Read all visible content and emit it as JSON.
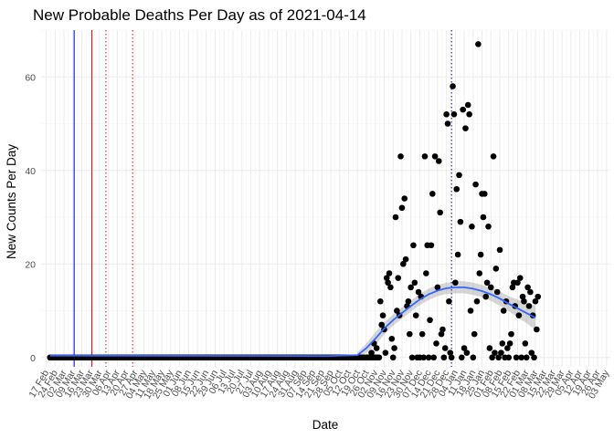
{
  "chart_data": {
    "type": "scatter",
    "title": "New Probable Deaths Per Day as of 2021-04-14",
    "xlabel": "Date",
    "ylabel": "New Counts Per Day",
    "xlim": [
      "2020-02-13",
      "2021-05-06"
    ],
    "ylim": [
      -2,
      70
    ],
    "y_ticks": [
      0,
      20,
      40,
      60
    ],
    "x_tick_labels": [
      "17 Feb",
      "24 Feb",
      "02 Mar",
      "09 Mar",
      "16 Mar",
      "23 Mar",
      "30 Mar",
      "06 Apr",
      "13 Apr",
      "20 Apr",
      "27 Apr",
      "04 May",
      "11 May",
      "18 May",
      "25 May",
      "01 Jun",
      "08 Jun",
      "15 Jun",
      "22 Jun",
      "29 Jun",
      "06 Jul",
      "13 Jul",
      "20 Jul",
      "27 Jul",
      "03 Aug",
      "10 Aug",
      "17 Aug",
      "24 Aug",
      "31 Aug",
      "07 Sep",
      "14 Sep",
      "21 Sep",
      "28 Sep",
      "05 Oct",
      "12 Oct",
      "19 Oct",
      "26 Oct",
      "02 Nov",
      "09 Nov",
      "16 Nov",
      "23 Nov",
      "30 Nov",
      "07 Dec",
      "14 Dec",
      "21 Dec",
      "28 Dec",
      "04 Jan",
      "11 Jan",
      "18 Jan",
      "25 Jan",
      "01 Feb",
      "08 Feb",
      "15 Feb",
      "22 Feb",
      "01 Mar",
      "08 Mar",
      "15 Mar",
      "22 Mar",
      "29 Mar",
      "05 Apr",
      "12 Apr",
      "19 Apr",
      "26 Apr",
      "03 May"
    ],
    "x_tick_start": "2020-02-17",
    "x_tick_step_days": 7,
    "zero_run": {
      "start": "2020-02-20",
      "end": "2020-11-05",
      "value": 0
    },
    "points": [
      [
        "2020-10-28",
        0
      ],
      [
        "2020-10-30",
        1
      ],
      [
        "2020-11-01",
        3
      ],
      [
        "2020-11-03",
        2
      ],
      [
        "2020-11-04",
        0
      ],
      [
        "2020-11-06",
        12
      ],
      [
        "2020-11-07",
        7
      ],
      [
        "2020-11-08",
        9
      ],
      [
        "2020-11-09",
        6
      ],
      [
        "2020-11-10",
        1
      ],
      [
        "2020-11-11",
        17
      ],
      [
        "2020-11-12",
        16
      ],
      [
        "2020-11-13",
        18
      ],
      [
        "2020-11-14",
        15
      ],
      [
        "2020-11-15",
        4
      ],
      [
        "2020-11-16",
        0
      ],
      [
        "2020-11-17",
        2
      ],
      [
        "2020-11-18",
        30
      ],
      [
        "2020-11-19",
        10
      ],
      [
        "2020-11-20",
        17
      ],
      [
        "2020-11-21",
        9
      ],
      [
        "2020-11-22",
        43
      ],
      [
        "2020-11-23",
        32
      ],
      [
        "2020-11-24",
        20
      ],
      [
        "2020-11-25",
        34
      ],
      [
        "2020-11-26",
        21
      ],
      [
        "2020-11-27",
        11
      ],
      [
        "2020-11-28",
        12
      ],
      [
        "2020-11-29",
        5
      ],
      [
        "2020-11-30",
        15
      ],
      [
        "2020-12-01",
        0
      ],
      [
        "2020-12-02",
        24
      ],
      [
        "2020-12-03",
        16
      ],
      [
        "2020-12-04",
        9
      ],
      [
        "2020-12-05",
        0
      ],
      [
        "2020-12-06",
        14
      ],
      [
        "2020-12-07",
        0
      ],
      [
        "2020-12-08",
        13
      ],
      [
        "2020-12-09",
        5
      ],
      [
        "2020-12-10",
        0
      ],
      [
        "2020-12-11",
        43
      ],
      [
        "2020-12-12",
        18
      ],
      [
        "2020-12-13",
        24
      ],
      [
        "2020-12-14",
        0
      ],
      [
        "2020-12-15",
        8
      ],
      [
        "2020-12-16",
        24
      ],
      [
        "2020-12-17",
        35
      ],
      [
        "2020-12-18",
        0
      ],
      [
        "2020-12-19",
        43
      ],
      [
        "2020-12-20",
        3
      ],
      [
        "2020-12-21",
        15
      ],
      [
        "2020-12-22",
        42
      ],
      [
        "2020-12-23",
        31
      ],
      [
        "2020-12-24",
        5
      ],
      [
        "2020-12-25",
        6
      ],
      [
        "2020-12-26",
        0
      ],
      [
        "2020-12-27",
        2
      ],
      [
        "2020-12-28",
        52
      ],
      [
        "2020-12-29",
        50
      ],
      [
        "2020-12-30",
        12
      ],
      [
        "2020-12-31",
        1
      ],
      [
        "2021-01-01",
        0
      ],
      [
        "2021-01-02",
        58
      ],
      [
        "2021-01-03",
        52
      ],
      [
        "2021-01-04",
        16
      ],
      [
        "2021-01-05",
        36
      ],
      [
        "2021-01-06",
        22
      ],
      [
        "2021-01-07",
        39
      ],
      [
        "2021-01-08",
        29
      ],
      [
        "2021-01-09",
        0
      ],
      [
        "2021-01-10",
        53
      ],
      [
        "2021-01-11",
        2
      ],
      [
        "2021-01-12",
        49
      ],
      [
        "2021-01-13",
        1
      ],
      [
        "2021-01-14",
        54
      ],
      [
        "2021-01-15",
        52
      ],
      [
        "2021-01-16",
        10
      ],
      [
        "2021-01-17",
        28
      ],
      [
        "2021-01-18",
        0
      ],
      [
        "2021-01-19",
        5
      ],
      [
        "2021-01-20",
        37
      ],
      [
        "2021-01-21",
        12
      ],
      [
        "2021-01-22",
        67
      ],
      [
        "2021-01-23",
        18
      ],
      [
        "2021-01-24",
        22
      ],
      [
        "2021-01-25",
        35
      ],
      [
        "2021-01-26",
        30
      ],
      [
        "2021-01-27",
        35
      ],
      [
        "2021-01-28",
        13
      ],
      [
        "2021-01-29",
        16
      ],
      [
        "2021-01-30",
        28
      ],
      [
        "2021-01-31",
        2
      ],
      [
        "2021-02-01",
        15
      ],
      [
        "2021-02-02",
        0
      ],
      [
        "2021-02-03",
        43
      ],
      [
        "2021-02-04",
        1
      ],
      [
        "2021-02-05",
        19
      ],
      [
        "2021-02-06",
        14
      ],
      [
        "2021-02-07",
        0
      ],
      [
        "2021-02-08",
        23
      ],
      [
        "2021-02-09",
        1
      ],
      [
        "2021-02-10",
        3
      ],
      [
        "2021-02-11",
        10
      ],
      [
        "2021-02-12",
        0
      ],
      [
        "2021-02-13",
        12
      ],
      [
        "2021-02-14",
        2
      ],
      [
        "2021-02-15",
        0
      ],
      [
        "2021-02-16",
        3
      ],
      [
        "2021-02-17",
        5
      ],
      [
        "2021-02-18",
        15
      ],
      [
        "2021-02-19",
        16
      ],
      [
        "2021-02-20",
        11
      ],
      [
        "2021-02-21",
        0
      ],
      [
        "2021-02-22",
        16
      ],
      [
        "2021-02-23",
        9
      ],
      [
        "2021-02-24",
        17
      ],
      [
        "2021-02-25",
        0
      ],
      [
        "2021-02-26",
        13
      ],
      [
        "2021-02-27",
        12
      ],
      [
        "2021-02-28",
        3
      ],
      [
        "2021-03-01",
        0
      ],
      [
        "2021-03-02",
        15
      ],
      [
        "2021-03-03",
        11
      ],
      [
        "2021-03-04",
        14
      ],
      [
        "2021-03-05",
        1
      ],
      [
        "2021-03-06",
        9
      ],
      [
        "2021-03-07",
        0
      ],
      [
        "2021-03-08",
        12
      ],
      [
        "2021-03-09",
        6
      ],
      [
        "2021-03-10",
        13
      ]
    ],
    "smooth": {
      "color": "#3366ff",
      "line": [
        [
          "2020-10-19",
          0.5
        ],
        [
          "2020-10-26",
          2
        ],
        [
          "2020-11-02",
          4
        ],
        [
          "2020-11-09",
          6.2
        ],
        [
          "2020-11-16",
          8
        ],
        [
          "2020-11-23",
          9.5
        ],
        [
          "2020-11-30",
          11
        ],
        [
          "2020-12-07",
          12.4
        ],
        [
          "2020-12-14",
          13.5
        ],
        [
          "2020-12-21",
          14.3
        ],
        [
          "2020-12-28",
          14.8
        ],
        [
          "2021-01-04",
          15
        ],
        [
          "2021-01-11",
          15
        ],
        [
          "2021-01-18",
          14.7
        ],
        [
          "2021-01-25",
          14.2
        ],
        [
          "2021-02-01",
          13.5
        ],
        [
          "2021-02-08",
          12.6
        ],
        [
          "2021-02-15",
          11.5
        ],
        [
          "2021-02-22",
          10.5
        ],
        [
          "2021-03-01",
          9.5
        ],
        [
          "2021-03-08",
          8.5
        ]
      ],
      "band_halfwidth": [
        0.6,
        1,
        1.4,
        1.3,
        1.2,
        1.2,
        1.2,
        1.2,
        1.2,
        1.2,
        1.2,
        1.3,
        1.3,
        1.3,
        1.3,
        1.4,
        1.5,
        1.6,
        1.9,
        2.2,
        2.6
      ]
    },
    "vlines": [
      {
        "date": "2020-03-10",
        "color": "#0000cc",
        "style": "solid"
      },
      {
        "date": "2020-03-24",
        "color": "#cc0000",
        "style": "solid"
      },
      {
        "date": "2020-04-04",
        "color": "#cc0000",
        "style": "dotted"
      },
      {
        "date": "2020-04-25",
        "color": "#cc0000",
        "style": "dotted"
      },
      {
        "date": "2021-01-01",
        "color": "#0000cc",
        "style": "dotted"
      }
    ],
    "grid": true,
    "point_color": "#000000",
    "legend": "none"
  }
}
